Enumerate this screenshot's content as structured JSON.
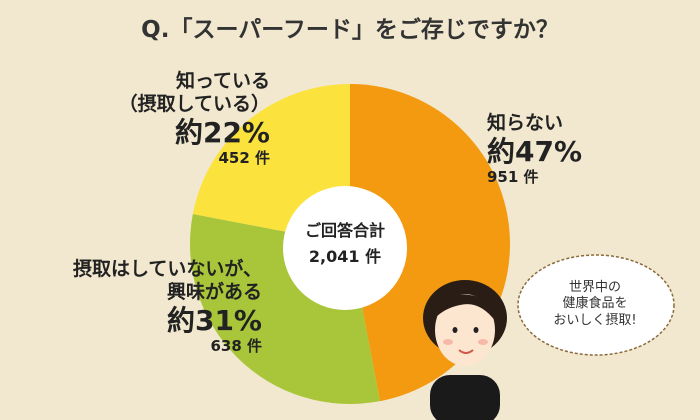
{
  "chart_data": {
    "type": "pie",
    "title": "Q.「スーパーフード」をご存じですか？",
    "categories": [
      "知らない",
      "摂取はしていないが、\n興味がある",
      "知っている\n（摂取している）"
    ],
    "values": [
      47,
      31,
      22
    ],
    "value_labels": [
      "約47%",
      "約31%",
      "約22%"
    ],
    "count_labels": [
      "951 件",
      "638 件",
      "452 件"
    ],
    "colors": [
      "#f39a10",
      "#a9c63a",
      "#fbe23c"
    ],
    "center_label": "ご回答合計",
    "total_label": "2,041 件",
    "annotation": "世界中の\n健康食品を\nおいしく摂取!"
  }
}
